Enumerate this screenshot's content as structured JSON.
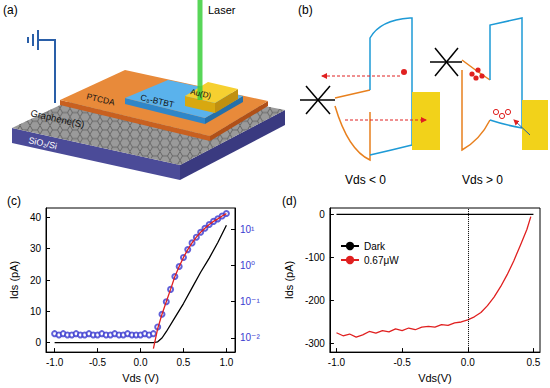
{
  "diagrams": {
    "a": {
      "label": "(a)",
      "laser": "Laser",
      "graphene": "Graphene(S)",
      "ptcda": "PTCDA",
      "c8btbt": "C₈-BTBT",
      "au": "Au(D)",
      "substrate": "SiO₂/Si"
    },
    "b": {
      "label": "(b)",
      "left_caption": "Vds < 0",
      "right_caption": "Vds > 0"
    }
  },
  "chart_data": [
    {
      "type": "line",
      "title": "(c)",
      "xlabel": "Vds (V)",
      "ylabel": "Ids (pA)",
      "xlim": [
        -1.1,
        1.1
      ],
      "xticks": [
        {
          "value": -1,
          "label": "-1.0"
        },
        {
          "value": -0.5,
          "label": "-0.5"
        },
        {
          "value": 0,
          "label": "0.0"
        },
        {
          "value": 0.5,
          "label": "0.5"
        },
        {
          "value": 1,
          "label": "1.0"
        }
      ],
      "ylim": [
        -3,
        43
      ],
      "yticks": [
        0,
        10,
        20,
        30,
        40
      ],
      "log": "y2",
      "y2lim": [
        0.004,
        40
      ],
      "y2ticks": [
        {
          "value": 0.01,
          "label": "10⁻²"
        },
        {
          "value": 0.1,
          "label": "10⁻¹"
        },
        {
          "value": 1,
          "label": "10⁰"
        },
        {
          "value": 10,
          "label": "10¹"
        }
      ],
      "grid": false,
      "series": [
        {
          "color": "#000000",
          "type": "line",
          "marker": "none",
          "line_style": "solid",
          "x": [
            -1.0,
            -0.5,
            0.0,
            0.15,
            0.2,
            0.25,
            0.3,
            0.4,
            0.5,
            0.6,
            0.7,
            0.8,
            0.9,
            1.0
          ],
          "values": [
            0,
            0,
            0,
            0,
            0.3,
            1.5,
            3.5,
            8,
            12.5,
            17.5,
            22.5,
            27,
            32,
            37.5
          ]
        },
        {
          "color": "#3a3ad0",
          "type": "scatter",
          "marker": "open_circle",
          "line_style": "none",
          "axis": "y2",
          "x": [
            -1.0,
            -0.95,
            -0.9,
            -0.85,
            -0.8,
            -0.75,
            -0.7,
            -0.65,
            -0.6,
            -0.55,
            -0.5,
            -0.45,
            -0.4,
            -0.35,
            -0.3,
            -0.25,
            -0.2,
            -0.15,
            -0.1,
            -0.05,
            0.0,
            0.05,
            0.1,
            0.15,
            0.2,
            0.25,
            0.3,
            0.35,
            0.4,
            0.45,
            0.5,
            0.55,
            0.6,
            0.65,
            0.7,
            0.75,
            0.8,
            0.85,
            0.9,
            0.95,
            1.0
          ],
          "values": [
            0.013,
            0.012,
            0.013,
            0.012,
            0.012,
            0.013,
            0.012,
            0.012,
            0.013,
            0.012,
            0.012,
            0.013,
            0.012,
            0.012,
            0.013,
            0.012,
            0.012,
            0.013,
            0.012,
            0.012,
            0.012,
            0.013,
            0.012,
            0.013,
            0.02,
            0.045,
            0.1,
            0.22,
            0.5,
            0.95,
            1.7,
            2.8,
            4.3,
            6.2,
            8.5,
            11,
            14,
            17,
            20,
            24,
            28
          ]
        },
        {
          "color": "#e02020",
          "type": "line",
          "marker": "none",
          "line_style": "solid",
          "axis": "y2",
          "x": [
            0.15,
            0.2,
            0.25,
            0.3,
            0.35,
            0.4,
            0.45,
            0.5,
            0.55,
            0.6,
            0.65,
            0.7,
            0.75,
            0.8,
            0.85,
            0.9,
            0.95,
            1.0
          ],
          "values": [
            0.005,
            0.018,
            0.045,
            0.1,
            0.22,
            0.5,
            0.95,
            1.7,
            2.8,
            4.3,
            6.2,
            8.5,
            11,
            14,
            17,
            20,
            24,
            28
          ]
        }
      ]
    },
    {
      "type": "line",
      "title": "(d)",
      "xlabel": "Vds(V)",
      "ylabel": "Ids (pA)",
      "xlim": [
        -1.05,
        0.55
      ],
      "xticks": [
        {
          "value": -1,
          "label": "-1.0"
        },
        {
          "value": -0.5,
          "label": "-0.5"
        },
        {
          "value": 0,
          "label": "0.0"
        },
        {
          "value": 0.5,
          "label": "0.5"
        }
      ],
      "ylim": [
        -320,
        15
      ],
      "yticks": [
        -300,
        -200,
        -100,
        0
      ],
      "grid": false,
      "legend": "upper left",
      "reference_lines": [
        {
          "axis": "x",
          "value": 0,
          "line_style": "dotted"
        }
      ],
      "series": [
        {
          "name": "Dark",
          "color": "#000000",
          "type": "line",
          "marker": "none",
          "line_style": "solid",
          "x": [
            -1.0,
            0.5
          ],
          "values": [
            0,
            0
          ]
        },
        {
          "name": "0.67μW",
          "color": "#e02020",
          "type": "line",
          "marker": "none",
          "line_style": "solid",
          "x": [
            -1.0,
            -0.95,
            -0.9,
            -0.85,
            -0.8,
            -0.75,
            -0.7,
            -0.65,
            -0.6,
            -0.55,
            -0.5,
            -0.45,
            -0.4,
            -0.35,
            -0.3,
            -0.25,
            -0.2,
            -0.15,
            -0.1,
            -0.05,
            0.0,
            0.05,
            0.1,
            0.15,
            0.2,
            0.25,
            0.3,
            0.35,
            0.4,
            0.45,
            0.48
          ],
          "values": [
            -275,
            -282,
            -278,
            -285,
            -280,
            -272,
            -276,
            -270,
            -273,
            -266,
            -270,
            -264,
            -268,
            -262,
            -260,
            -262,
            -256,
            -258,
            -252,
            -250,
            -245,
            -238,
            -228,
            -212,
            -192,
            -168,
            -140,
            -108,
            -72,
            -35,
            -5
          ]
        }
      ]
    }
  ]
}
